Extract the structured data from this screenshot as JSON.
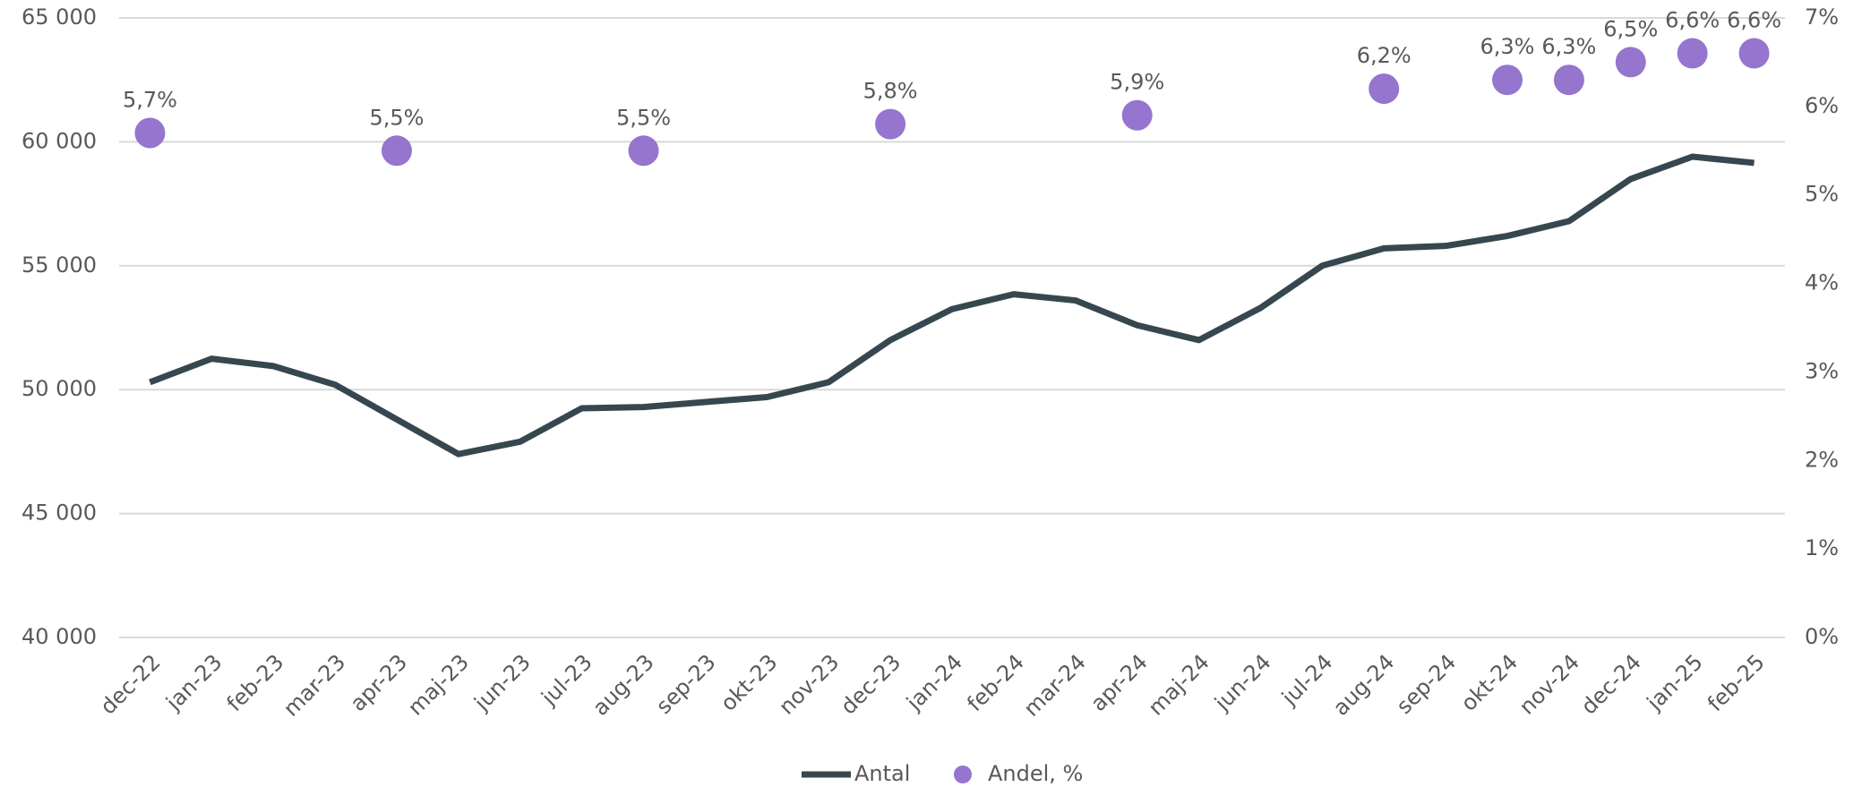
{
  "chart_data": {
    "type": "line",
    "categories": [
      "dec-22",
      "jan-23",
      "feb-23",
      "mar-23",
      "apr-23",
      "maj-23",
      "jun-23",
      "jul-23",
      "aug-23",
      "sep-23",
      "okt-23",
      "nov-23",
      "dec-23",
      "jan-24",
      "feb-24",
      "mar-24",
      "apr-24",
      "maj-24",
      "jun-24",
      "jul-24",
      "aug-24",
      "sep-24",
      "okt-24",
      "nov-24",
      "dec-24",
      "jan-25",
      "feb-25"
    ],
    "series": [
      {
        "name": "Antal",
        "color": "#37474f",
        "values": [
          50300,
          51250,
          50950,
          50200,
          48800,
          47400,
          47900,
          49250,
          49300,
          49500,
          49700,
          50300,
          52000,
          53250,
          53850,
          53600,
          52600,
          52000,
          53300,
          55000,
          55700,
          55800,
          56200,
          56800,
          58500,
          59400,
          59150
        ]
      },
      {
        "name": "Andel, %",
        "color": "#9575cd",
        "axis": "y2",
        "marker": "dot",
        "values": [
          5.7,
          null,
          null,
          null,
          5.5,
          null,
          null,
          null,
          5.5,
          null,
          null,
          null,
          5.8,
          null,
          null,
          null,
          5.9,
          null,
          null,
          null,
          6.2,
          null,
          6.3,
          6.3,
          6.5,
          6.6,
          6.6
        ],
        "value_labels": [
          "5,7%",
          null,
          null,
          null,
          "5,5%",
          null,
          null,
          null,
          "5,5%",
          null,
          null,
          null,
          "5,8%",
          null,
          null,
          null,
          "5,9%",
          null,
          null,
          null,
          "6,2%",
          null,
          "6,3%",
          "6,3%",
          "6,5%",
          "6,6%",
          "6,6%"
        ]
      }
    ],
    "ylim": [
      40000,
      65000
    ],
    "yticks": [
      {
        "value": 40000,
        "label": "40 000"
      },
      {
        "value": 45000,
        "label": "45 000"
      },
      {
        "value": 50000,
        "label": "50 000"
      },
      {
        "value": 55000,
        "label": "55 000"
      },
      {
        "value": 60000,
        "label": "60 000"
      },
      {
        "value": 65000,
        "label": "65 000"
      }
    ],
    "y2lim": [
      0,
      7
    ],
    "y2ticks": [
      {
        "value": 0,
        "label": "0%"
      },
      {
        "value": 1,
        "label": "1%"
      },
      {
        "value": 2,
        "label": "2%"
      },
      {
        "value": 3,
        "label": "3%"
      },
      {
        "value": 4,
        "label": "4%"
      },
      {
        "value": 5,
        "label": "5%"
      },
      {
        "value": 6,
        "label": "6%"
      },
      {
        "value": 7,
        "label": "7%"
      }
    ],
    "grid": true,
    "legend": "bottom"
  }
}
